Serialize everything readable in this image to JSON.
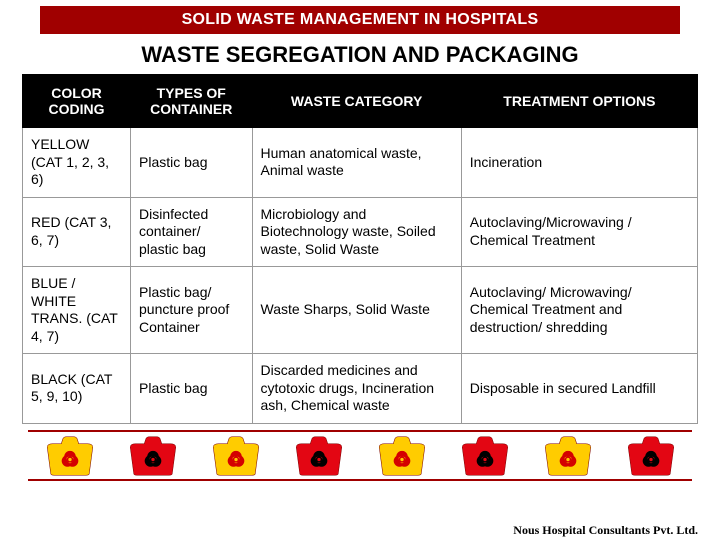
{
  "banner": "SOLID WASTE MANAGEMENT IN HOSPITALS",
  "heading": "WASTE SEGREGATION AND PACKAGING",
  "table": {
    "headers": [
      "COLOR CODING",
      "TYPES OF CONTAINER",
      "WASTE CATEGORY",
      "TREATMENT OPTIONS"
    ],
    "rows": [
      {
        "cells": [
          "YELLOW (CAT 1, 2, 3, 6)",
          "Plastic bag",
          "Human anatomical waste, Animal waste",
          "Incineration"
        ],
        "highlight": true,
        "bg_color": "#ffff00"
      },
      {
        "cells": [
          "RED (CAT 3, 6, 7)",
          "Disinfected container/ plastic bag",
          "Microbiology and Biotechnology waste, Soiled waste, Solid Waste",
          "Autoclaving/Microwaving / Chemical Treatment"
        ],
        "highlight": false
      },
      {
        "cells": [
          "BLUE / WHITE TRANS. (CAT 4, 7)",
          "Plastic bag/ puncture proof Container",
          "Waste Sharps, Solid Waste",
          "Autoclaving/ Microwaving/ Chemical Treatment and destruction/ shredding"
        ],
        "highlight": false
      },
      {
        "cells": [
          "BLACK (CAT 5, 9, 10)",
          "Plastic bag",
          "Discarded medicines and cytotoxic drugs, Incineration ash, Chemical waste",
          "Disposable in secured Landfill"
        ],
        "highlight": false
      }
    ]
  },
  "bags": [
    {
      "fill": "#ffcc00",
      "symbol": "#d40000"
    },
    {
      "fill": "#e30613",
      "symbol": "#000000"
    },
    {
      "fill": "#ffcc00",
      "symbol": "#d40000"
    },
    {
      "fill": "#e30613",
      "symbol": "#000000"
    },
    {
      "fill": "#ffcc00",
      "symbol": "#d40000"
    },
    {
      "fill": "#e30613",
      "symbol": "#000000"
    },
    {
      "fill": "#ffcc00",
      "symbol": "#d40000"
    },
    {
      "fill": "#e30613",
      "symbol": "#000000"
    }
  ],
  "footer": "Nous Hospital Consultants Pvt. Ltd.",
  "colors": {
    "banner_bg": "#a00000",
    "banner_text": "#ffffff",
    "header_bg": "#000000",
    "header_text": "#ffffff",
    "page_bg": "#ffffff",
    "cell_border": "#999999",
    "divider": "#a00000"
  }
}
